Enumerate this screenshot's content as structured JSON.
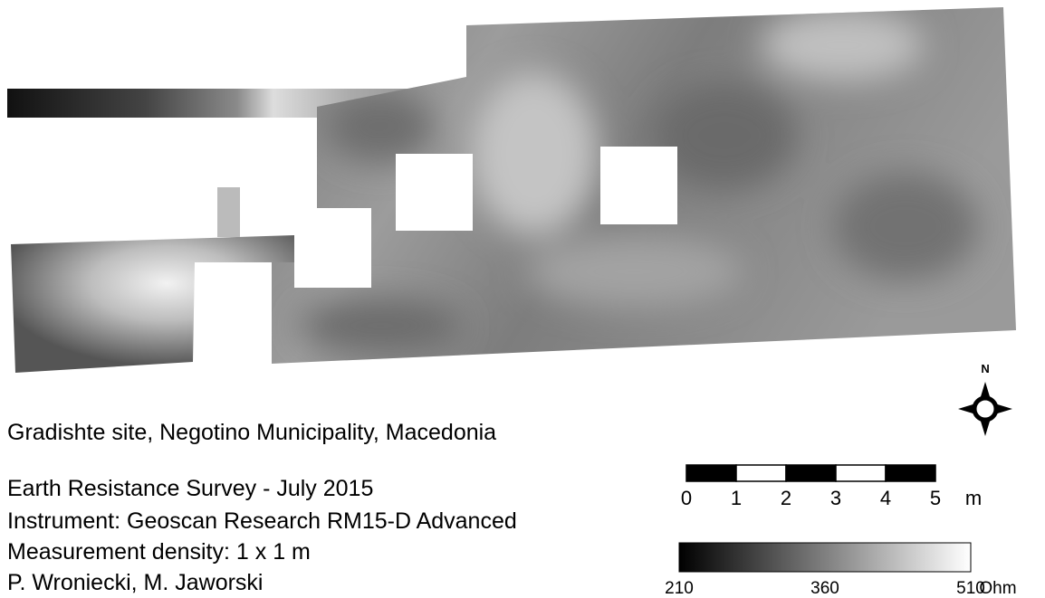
{
  "title": "Gradishte site, Negotino Municipality, Macedonia",
  "survey": {
    "lines": [
      "Earth Resistance Survey - July 2015",
      "Instrument: Geoscan Research RM15-D Advanced",
      "Measurement density: 1 x 1 m",
      "P. Wroniecki, M. Jaworski"
    ]
  },
  "scale_bar": {
    "ticks": [
      0,
      1,
      2,
      3,
      4,
      5
    ],
    "unit": "m"
  },
  "legend": {
    "ticks": [
      210,
      360,
      510
    ],
    "unit": "Ohm"
  },
  "compass": {
    "label": "N"
  }
}
